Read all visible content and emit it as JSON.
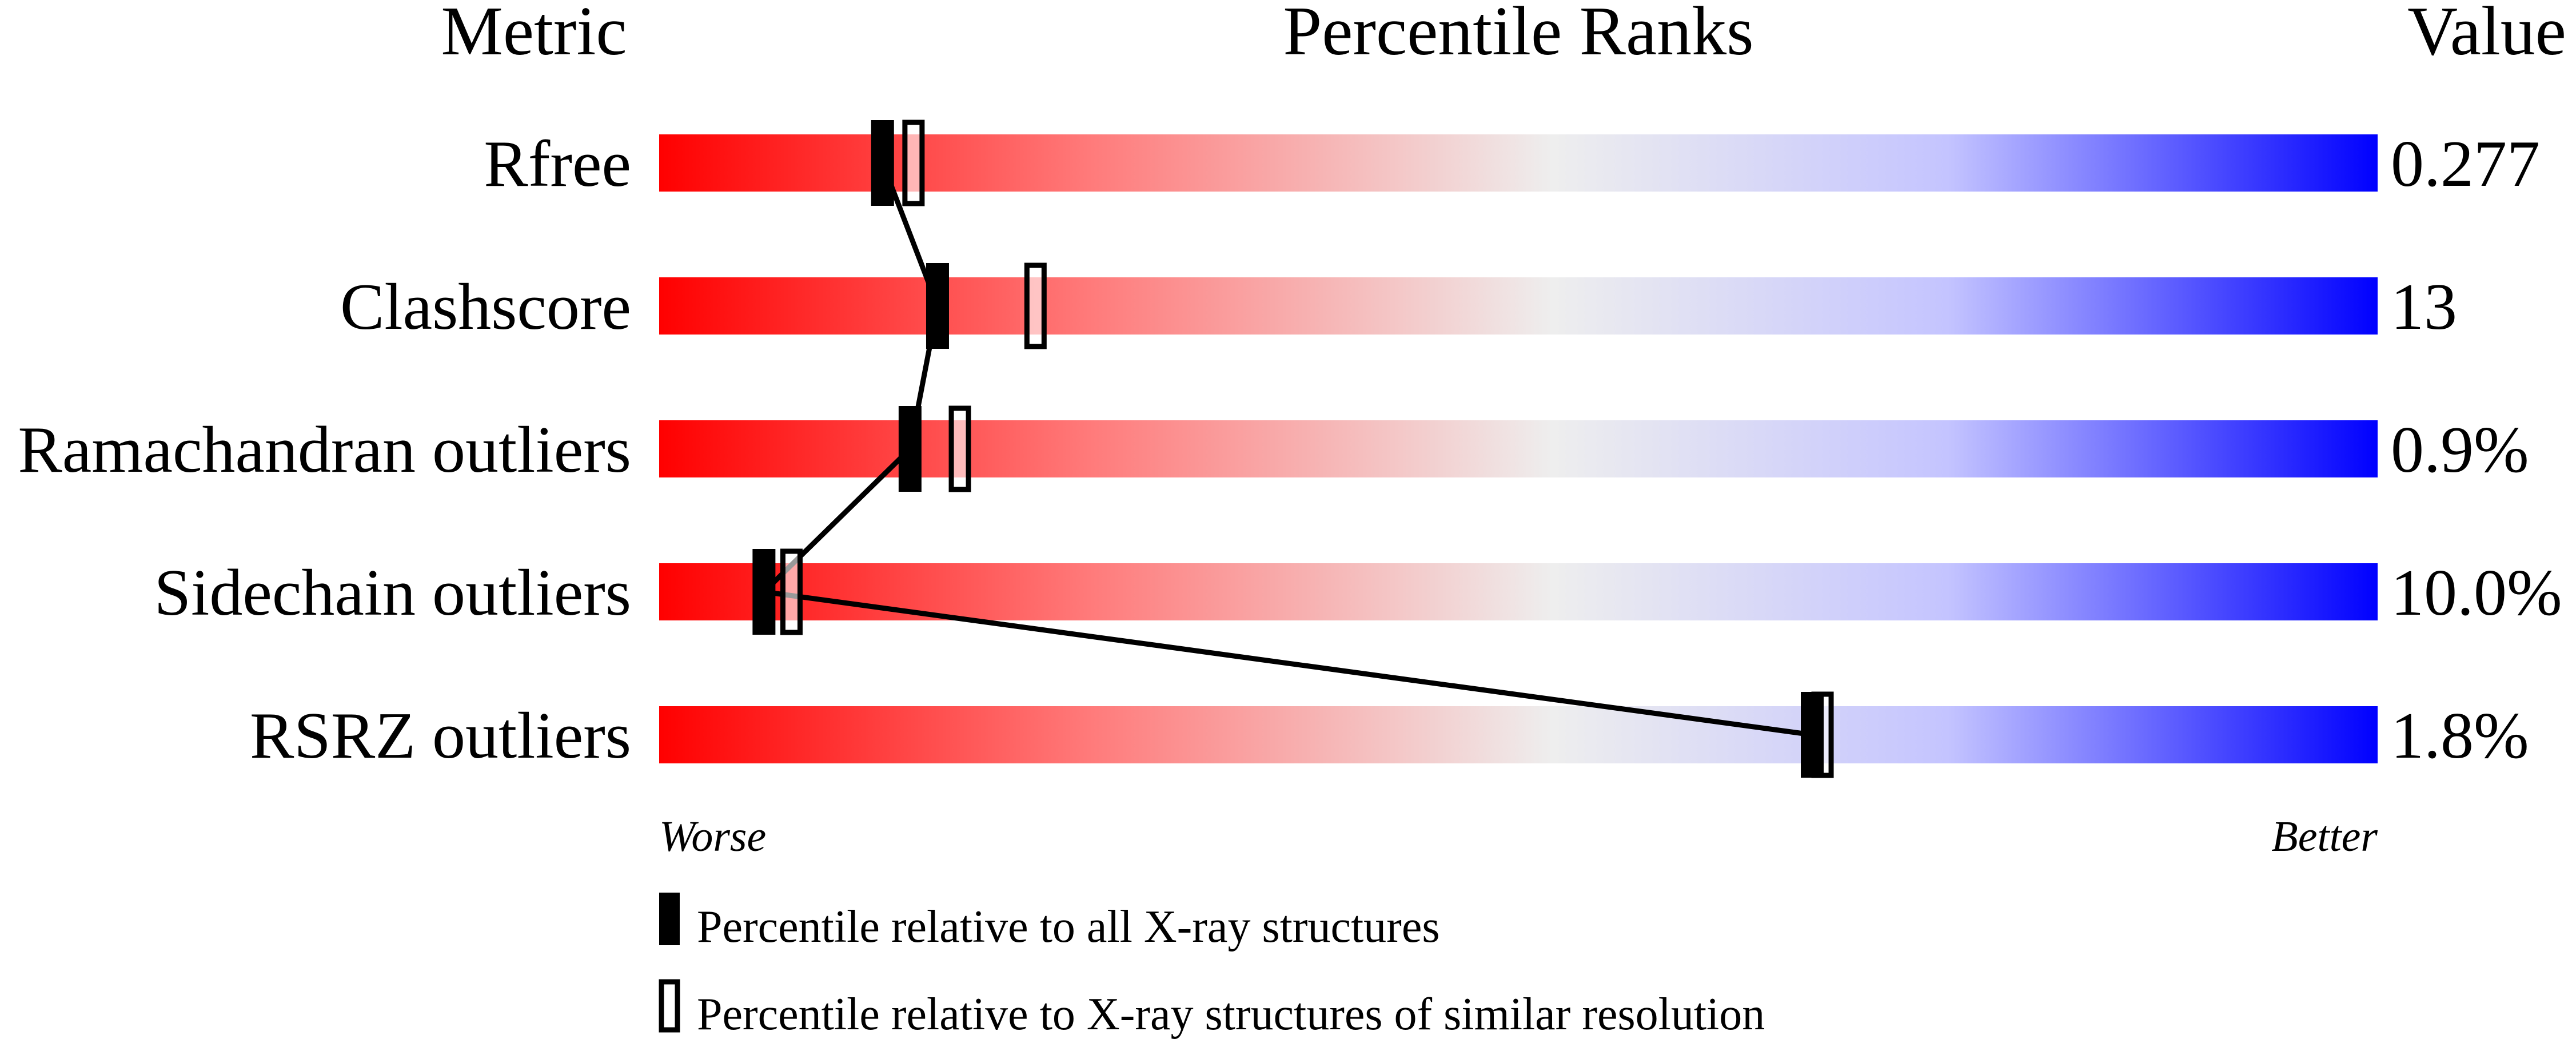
{
  "chart_data": {
    "type": "percentile-slider",
    "headers": {
      "metric": "Metric",
      "ranks": "Percentile Ranks",
      "value": "Value"
    },
    "xlim": [
      0,
      100
    ],
    "axis_labels": {
      "left": "Worse",
      "right": "Better"
    },
    "gradient_colors": [
      "#ff0000",
      "#eeeeee",
      "#0000ff"
    ],
    "metrics": [
      {
        "name": "Rfree",
        "value": "0.277",
        "percentile_all": 13.0,
        "percentile_similar": 14.8
      },
      {
        "name": "Clashscore",
        "value": "13",
        "percentile_all": 16.2,
        "percentile_similar": 21.9
      },
      {
        "name": "Ramachandran outliers",
        "value": "0.9%",
        "percentile_all": 14.6,
        "percentile_similar": 17.5
      },
      {
        "name": "Sidechain outliers",
        "value": "10.0%",
        "percentile_all": 6.1,
        "percentile_similar": 7.7
      },
      {
        "name": "RSRZ outliers",
        "value": "1.8%",
        "percentile_all": 67.1,
        "percentile_similar": 67.7
      }
    ],
    "legend": [
      {
        "marker": "filled",
        "label": "Percentile relative to all X-ray structures"
      },
      {
        "marker": "open",
        "label": "Percentile relative to X-ray structures of similar resolution"
      }
    ]
  }
}
